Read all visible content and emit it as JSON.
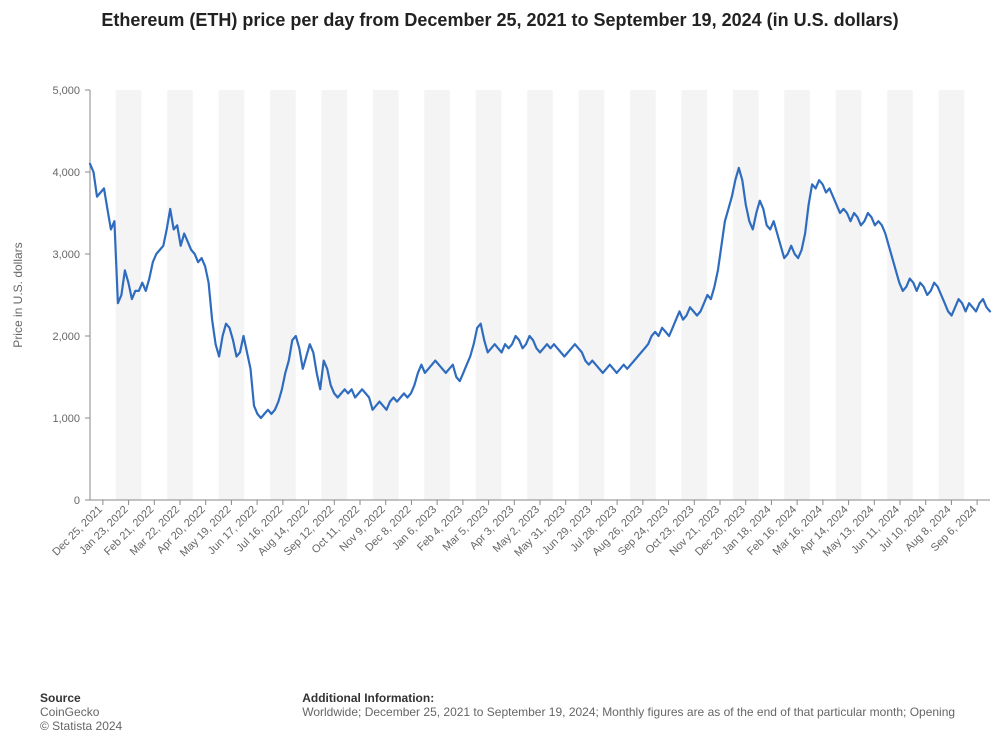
{
  "chart": {
    "type": "line",
    "title": "Ethereum (ETH) price per day from December 25, 2021 to September 19, 2024 (in U.S. dollars)",
    "ylabel": "Price in U.S. dollars",
    "ylim": [
      0,
      5000
    ],
    "ytick_step": 1000,
    "yticks": [
      0,
      1000,
      2000,
      3000,
      4000,
      5000
    ],
    "ytick_labels": [
      "0",
      "1,000",
      "2,000",
      "3,000",
      "4,000",
      "5,000"
    ],
    "line_color": "#2f6cc0",
    "line_width": 2.2,
    "background_color": "#ffffff",
    "band_color": "#f4f4f4",
    "axis_color": "#888888",
    "tick_font_size": 11,
    "tick_font_color": "#666666",
    "ylabel_font_size": 12,
    "ylabel_font_color": "#666666",
    "title_font_size": 18,
    "x_labels": [
      "Dec 25, 2021",
      "Jan 23, 2022",
      "Feb 21, 2022",
      "Mar 22, 2022",
      "Apr 20, 2022",
      "May 19, 2022",
      "Jun 17, 2022",
      "Jul 16, 2022",
      "Aug 14, 2022",
      "Sep 12, 2022",
      "Oct 11, 2022",
      "Nov 9, 2022",
      "Dec 8, 2022",
      "Jan 6, 2023",
      "Feb 4, 2023",
      "Mar 5, 2023",
      "Apr 3, 2023",
      "May 2, 2023",
      "May 31, 2023",
      "Jun 29, 2023",
      "Jul 28, 2023",
      "Aug 26, 2023",
      "Sep 24, 2023",
      "Oct 23, 2023",
      "Nov 21, 2023",
      "Dec 20, 2023",
      "Jan 18, 2024",
      "Feb 16, 2024",
      "Mar 16, 2024",
      "Apr 14, 2024",
      "May 13, 2024",
      "Jun 11, 2024",
      "Jul 10, 2024",
      "Aug 8, 2024",
      "Sep 6, 2024"
    ],
    "values": [
      4100,
      4000,
      3700,
      3750,
      3800,
      3550,
      3300,
      3400,
      2400,
      2500,
      2800,
      2650,
      2450,
      2550,
      2550,
      2650,
      2550,
      2700,
      2900,
      3000,
      3050,
      3100,
      3300,
      3550,
      3300,
      3350,
      3100,
      3250,
      3150,
      3050,
      3000,
      2900,
      2950,
      2850,
      2650,
      2200,
      1900,
      1750,
      2000,
      2150,
      2100,
      1950,
      1750,
      1800,
      2000,
      1800,
      1600,
      1150,
      1050,
      1000,
      1050,
      1100,
      1050,
      1100,
      1200,
      1350,
      1550,
      1700,
      1950,
      2000,
      1850,
      1600,
      1750,
      1900,
      1800,
      1550,
      1350,
      1700,
      1600,
      1400,
      1300,
      1250,
      1300,
      1350,
      1300,
      1350,
      1250,
      1300,
      1350,
      1300,
      1250,
      1100,
      1150,
      1200,
      1150,
      1100,
      1200,
      1250,
      1200,
      1250,
      1300,
      1250,
      1300,
      1400,
      1550,
      1650,
      1550,
      1600,
      1650,
      1700,
      1650,
      1600,
      1550,
      1600,
      1650,
      1500,
      1450,
      1550,
      1650,
      1750,
      1900,
      2100,
      2150,
      1950,
      1800,
      1850,
      1900,
      1850,
      1800,
      1900,
      1850,
      1900,
      2000,
      1950,
      1850,
      1900,
      2000,
      1950,
      1850,
      1800,
      1850,
      1900,
      1850,
      1900,
      1850,
      1800,
      1750,
      1800,
      1850,
      1900,
      1850,
      1800,
      1700,
      1650,
      1700,
      1650,
      1600,
      1550,
      1600,
      1650,
      1600,
      1550,
      1600,
      1650,
      1600,
      1650,
      1700,
      1750,
      1800,
      1850,
      1900,
      2000,
      2050,
      2000,
      2100,
      2050,
      2000,
      2100,
      2200,
      2300,
      2200,
      2250,
      2350,
      2300,
      2250,
      2300,
      2400,
      2500,
      2450,
      2600,
      2800,
      3100,
      3400,
      3550,
      3700,
      3900,
      4050,
      3900,
      3600,
      3400,
      3300,
      3500,
      3650,
      3550,
      3350,
      3300,
      3400,
      3250,
      3100,
      2950,
      3000,
      3100,
      3000,
      2950,
      3050,
      3250,
      3600,
      3850,
      3800,
      3900,
      3850,
      3750,
      3800,
      3700,
      3600,
      3500,
      3550,
      3500,
      3400,
      3500,
      3450,
      3350,
      3400,
      3500,
      3450,
      3350,
      3400,
      3350,
      3250,
      3100,
      2950,
      2800,
      2650,
      2550,
      2600,
      2700,
      2650,
      2550,
      2650,
      2600,
      2500,
      2550,
      2650,
      2600,
      2500,
      2400,
      2300,
      2250,
      2350,
      2450,
      2400,
      2300,
      2400,
      2350,
      2300,
      2400,
      2450,
      2350,
      2300
    ]
  },
  "footer": {
    "source_head": "Source",
    "source_line": "CoinGecko",
    "copyright": "© Statista 2024",
    "info_head": "Additional Information:",
    "info_line": "Worldwide; December 25, 2021 to September 19, 2024; Monthly figures are as of the end of that particular month; Opening"
  }
}
